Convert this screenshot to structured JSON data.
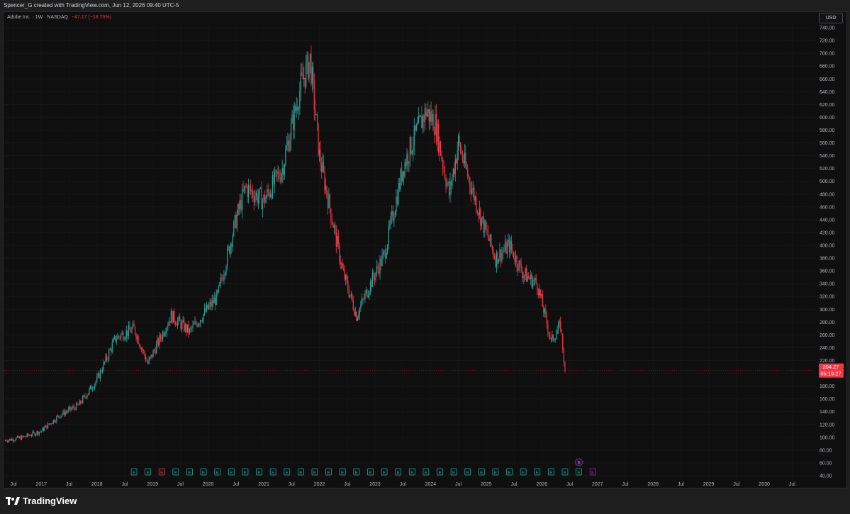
{
  "header": {
    "caption": "Spencer_G created with TradingView.com, Jun 12, 2026 09:40 UTC-5"
  },
  "legend": {
    "symbol": "Adobe Inc. · 1W · NASDAQ",
    "change": "−47.17 (−18.76%)"
  },
  "currency_button": "USD",
  "last_price": {
    "value": "204.27",
    "countdown": "05:19:27"
  },
  "brand": {
    "logo_text": "TradingView"
  },
  "colors": {
    "up": "#26a69a",
    "down": "#f23645",
    "earnings_past": "#26a69a",
    "earnings_miss": "#f23645",
    "earnings_next": "#9c27b0"
  },
  "chart_data": {
    "type": "candlestick",
    "title": "",
    "ylim": [
      30,
      750
    ],
    "y_ticks": [
      40,
      60,
      80,
      100,
      120,
      140,
      160,
      180,
      200,
      220,
      240,
      260,
      280,
      300,
      320,
      340,
      360,
      380,
      400,
      420,
      440,
      460,
      480,
      500,
      520,
      540,
      560,
      580,
      600,
      620,
      640,
      660,
      680,
      700,
      720,
      740
    ],
    "x_ticks": [
      "Jul",
      "2017",
      "Jul",
      "2018",
      "Jul",
      "2019",
      "Jul",
      "2020",
      "Jul",
      "2021",
      "Jul",
      "2022",
      "Jul",
      "2023",
      "Jul",
      "2024",
      "Jul",
      "2025",
      "Jul",
      "2026",
      "Jul",
      "2027",
      "Jul",
      "2028",
      "Jul",
      "2029",
      "Jul",
      "2030",
      "Jul"
    ],
    "xlim": [
      "2016-05",
      "2030-12"
    ],
    "x": [
      "2016-05",
      "2016-09",
      "2017-01",
      "2017-05",
      "2017-09",
      "2018-01",
      "2018-05",
      "2018-09",
      "2018-12",
      "2019-05",
      "2019-09",
      "2020-03",
      "2020-07",
      "2020-09",
      "2021-01",
      "2021-05",
      "2021-09",
      "2021-11",
      "2022-01",
      "2022-06",
      "2022-09",
      "2022-12",
      "2023-03",
      "2023-07",
      "2023-09",
      "2023-12",
      "2024-02",
      "2024-05",
      "2024-07",
      "2024-09",
      "2024-12",
      "2025-03",
      "2025-06",
      "2025-09",
      "2025-12",
      "2026-03",
      "2026-05",
      "2026-06"
    ],
    "close": [
      95,
      100,
      110,
      135,
      150,
      190,
      255,
      270,
      215,
      290,
      265,
      320,
      440,
      490,
      470,
      520,
      650,
      690,
      540,
      360,
      290,
      340,
      385,
      520,
      560,
      610,
      590,
      480,
      560,
      510,
      440,
      380,
      400,
      355,
      340,
      250,
      275,
      204
    ],
    "earnings_markers": 34,
    "last_value": 204.27
  }
}
